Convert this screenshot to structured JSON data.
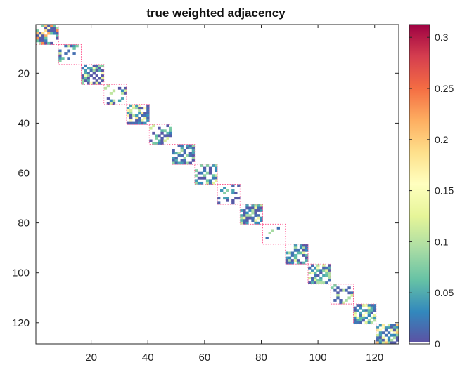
{
  "chart_data": {
    "type": "heatmap",
    "title": "true weighted adjacency",
    "xlabel": "",
    "ylabel": "",
    "matrix_size": 128,
    "xlim": [
      0.5,
      128.5
    ],
    "ylim": [
      0.5,
      128.5
    ],
    "x_ticks": [
      20,
      40,
      60,
      80,
      100,
      120
    ],
    "x_tick_labels": [
      "20",
      "40",
      "60",
      "80",
      "100",
      "120"
    ],
    "y_ticks": [
      20,
      40,
      60,
      80,
      100,
      120
    ],
    "y_tick_labels": [
      "20",
      "40",
      "60",
      "80",
      "100",
      "120"
    ],
    "colorbar": {
      "colormap": "Spectral (reversed)",
      "limits": [
        0,
        0.3125
      ],
      "ticks": [
        0,
        0.05,
        0.1,
        0.15,
        0.2,
        0.25,
        0.3
      ],
      "tick_labels": [
        "0",
        "0.05",
        "0.1",
        "0.15",
        "0.2",
        "0.25",
        "0.3"
      ],
      "colors": [
        "#5e4fa2",
        "#3288bd",
        "#66c2a5",
        "#abdda4",
        "#e6f598",
        "#ffffbf",
        "#fee08b",
        "#fdae61",
        "#f46d43",
        "#d53e4f",
        "#9e0142"
      ]
    },
    "blocks": [
      {
        "start": 1,
        "end": 8,
        "density": 0.85,
        "max_weight": 0.3
      },
      {
        "start": 9,
        "end": 16,
        "density": 0.3,
        "max_weight": 0.12
      },
      {
        "start": 17,
        "end": 24,
        "density": 0.85,
        "max_weight": 0.15
      },
      {
        "start": 25,
        "end": 32,
        "density": 0.3,
        "max_weight": 0.12
      },
      {
        "start": 33,
        "end": 40,
        "density": 0.75,
        "max_weight": 0.18
      },
      {
        "start": 41,
        "end": 48,
        "density": 0.55,
        "max_weight": 0.15
      },
      {
        "start": 49,
        "end": 56,
        "density": 0.75,
        "max_weight": 0.15
      },
      {
        "start": 57,
        "end": 64,
        "density": 0.5,
        "max_weight": 0.12
      },
      {
        "start": 65,
        "end": 72,
        "density": 0.35,
        "max_weight": 0.1
      },
      {
        "start": 73,
        "end": 80,
        "density": 0.8,
        "max_weight": 0.15
      },
      {
        "start": 81,
        "end": 88,
        "density": 0.05,
        "max_weight": 0.1
      },
      {
        "start": 89,
        "end": 96,
        "density": 0.65,
        "max_weight": 0.15
      },
      {
        "start": 97,
        "end": 104,
        "density": 0.85,
        "max_weight": 0.18
      },
      {
        "start": 105,
        "end": 112,
        "density": 0.45,
        "max_weight": 0.12
      },
      {
        "start": 113,
        "end": 120,
        "density": 0.85,
        "max_weight": 0.15
      },
      {
        "start": 121,
        "end": 128,
        "density": 0.8,
        "max_weight": 0.2
      }
    ],
    "block_outline_color": "#ff5c93",
    "diagonal_value": 0
  }
}
